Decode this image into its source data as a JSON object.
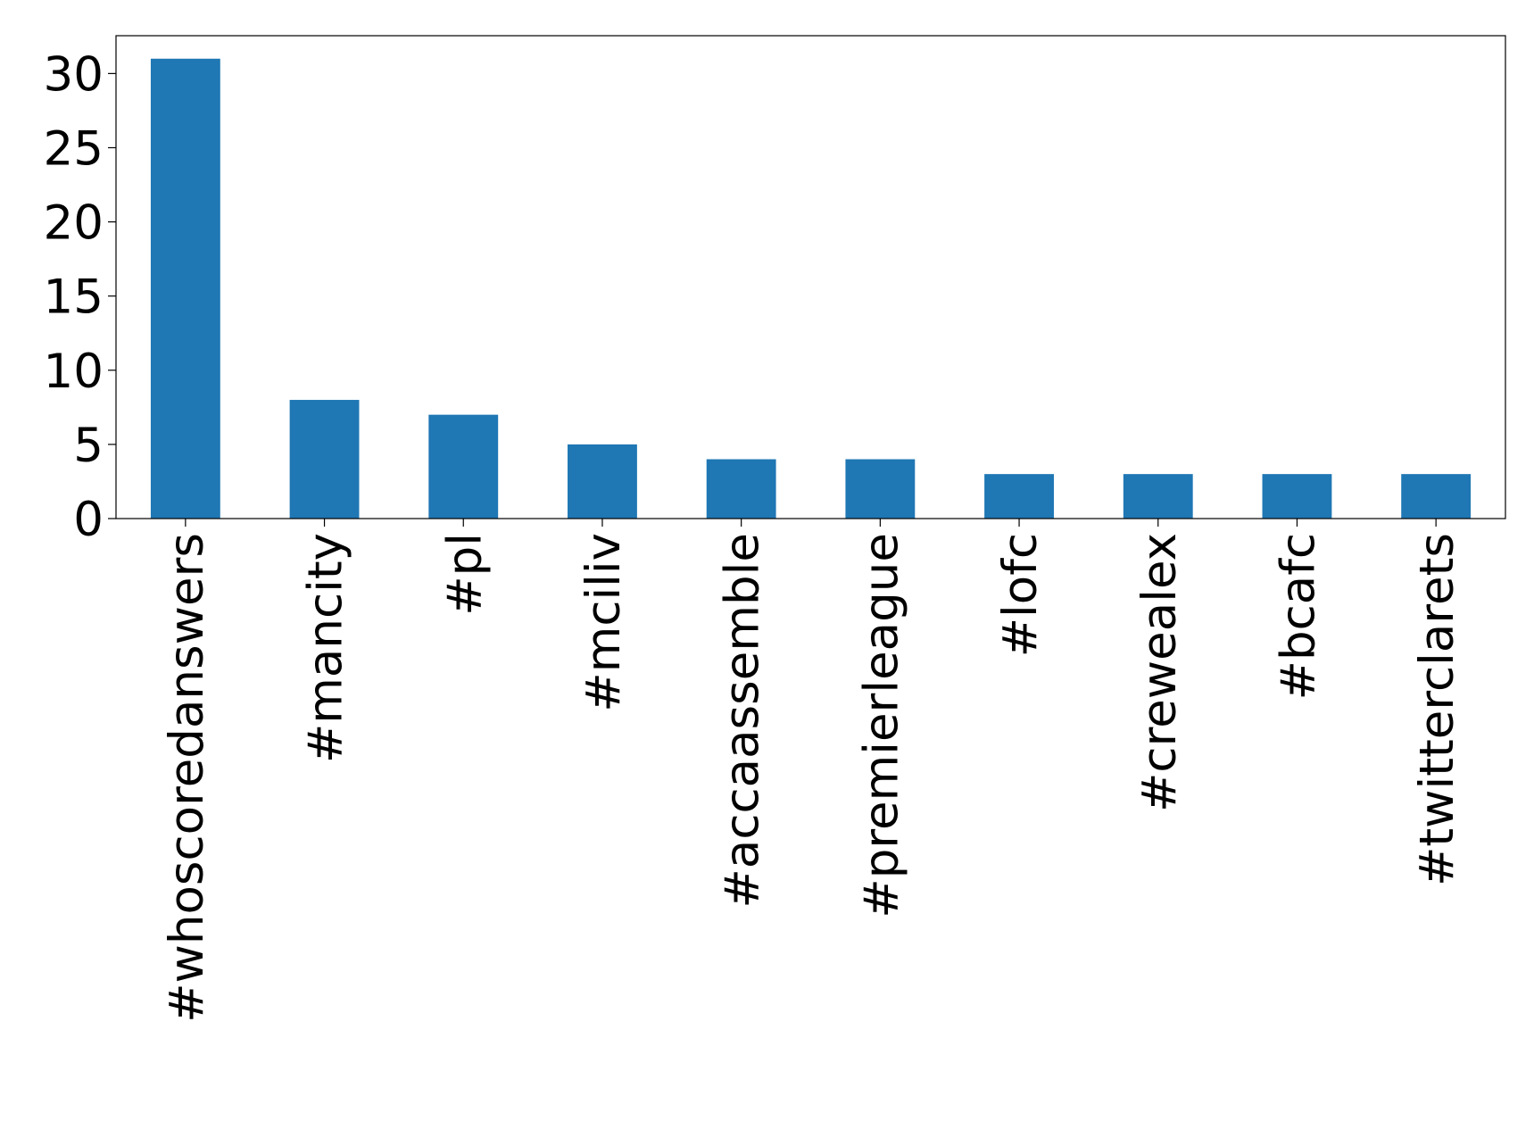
{
  "chart_data": {
    "type": "bar",
    "categories": [
      "#whoscoredanswers",
      "#mancity",
      "#pl",
      "#mciliv",
      "#accaassemble",
      "#premierleague",
      "#lofc",
      "#crewealex",
      "#bcafc",
      "#twitterclarets"
    ],
    "values": [
      31,
      8,
      7,
      5,
      4,
      4,
      3,
      3,
      3,
      3
    ],
    "color": "#1f77b4",
    "ylim": [
      0,
      32.55
    ],
    "yticks": [
      0,
      5,
      10,
      15,
      20,
      25,
      30
    ],
    "grid": false
  }
}
